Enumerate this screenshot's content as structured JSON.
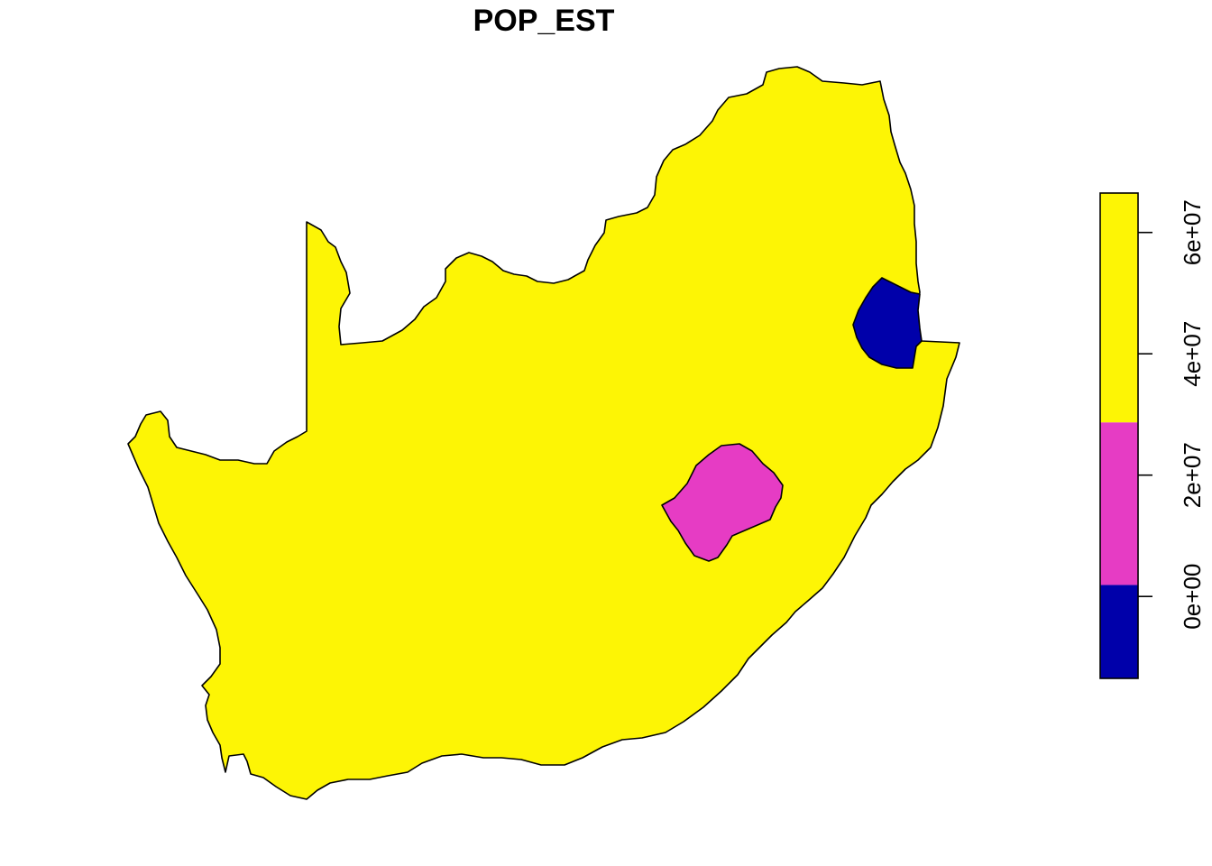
{
  "title": "POP_EST",
  "legend": {
    "ticks": [
      {
        "label": "0e+00",
        "value": 0
      },
      {
        "label": "2e+07",
        "value": 20000000
      },
      {
        "label": "4e+07",
        "value": 40000000
      },
      {
        "label": "6e+07",
        "value": 60000000
      }
    ],
    "range": [
      -13500000,
      66500000
    ],
    "classes": [
      {
        "from": -13500000,
        "to": 1900000,
        "color": "#0000AA"
      },
      {
        "from": 1900000,
        "to": 28700000,
        "color": "#E63CC4"
      },
      {
        "from": 28700000,
        "to": 66500000,
        "color": "#FDF505"
      }
    ]
  },
  "regions": [
    {
      "name": "South Africa",
      "color": "#FDF505"
    },
    {
      "name": "Lesotho",
      "color": "#E63CC4"
    },
    {
      "name": "Swaziland",
      "color": "#0000AA"
    }
  ]
}
